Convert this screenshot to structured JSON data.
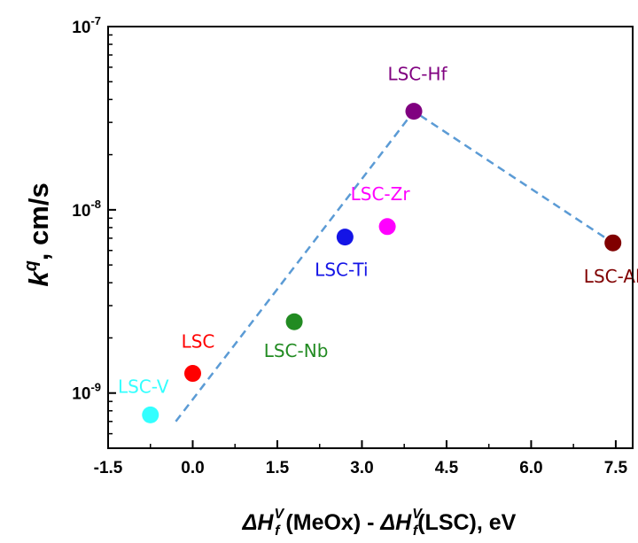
{
  "chart_data": {
    "type": "scatter",
    "title": "",
    "x_scale": "linear",
    "y_scale": "log",
    "xlim": [
      -1.5,
      7.8
    ],
    "ylim": [
      5e-10,
      1e-07
    ],
    "x_ticks": [
      -1.5,
      0.0,
      1.5,
      3.0,
      4.5,
      6.0,
      7.5
    ],
    "x_tick_labels": [
      "-1.5",
      "0.0",
      "1.5",
      "3.0",
      "4.5",
      "6.0",
      "7.5"
    ],
    "y_ticks": [
      1e-09,
      1e-08,
      1e-07
    ],
    "y_tick_labels": [
      {
        "base": "10",
        "exp": "-9"
      },
      {
        "base": "10",
        "exp": "-8"
      },
      {
        "base": "10",
        "exp": "-7"
      }
    ],
    "xlabel": {
      "p1": "ΔH",
      "sub1": "f",
      "sup1": "V",
      "p2": " (MeOx) - ",
      "p3": "ΔH",
      "sub2": "f",
      "sup2": "V",
      "p4": "(LSC), eV"
    },
    "ylabel": {
      "k": "k",
      "sup": "q",
      "rest": ", cm/s"
    },
    "grid": false,
    "points": [
      {
        "label": "LSC-V",
        "x": -0.75,
        "y": 7.6e-10,
        "color": "#33ffff"
      },
      {
        "label": "LSC",
        "x": 0.0,
        "y": 1.28e-09,
        "color": "#ff0000"
      },
      {
        "label": "LSC-Nb",
        "x": 1.8,
        "y": 2.45e-09,
        "color": "#228b22"
      },
      {
        "label": "LSC-Ti",
        "x": 2.7,
        "y": 7.1e-09,
        "color": "#1414e6"
      },
      {
        "label": "LSC-Zr",
        "x": 3.45,
        "y": 8.1e-09,
        "color": "#ff00ff"
      },
      {
        "label": "LSC-Hf",
        "x": 3.92,
        "y": 3.45e-08,
        "color": "#800080"
      },
      {
        "label": "LSC-Al",
        "x": 7.45,
        "y": 6.6e-09,
        "color": "#800000"
      }
    ],
    "trend_line": {
      "style": "dashed",
      "color": "#5b9bd5",
      "points": [
        {
          "x": -0.3,
          "y": 7e-10
        },
        {
          "x": 3.92,
          "y": 3.45e-08
        },
        {
          "x": 7.45,
          "y": 6.6e-09
        }
      ]
    }
  }
}
